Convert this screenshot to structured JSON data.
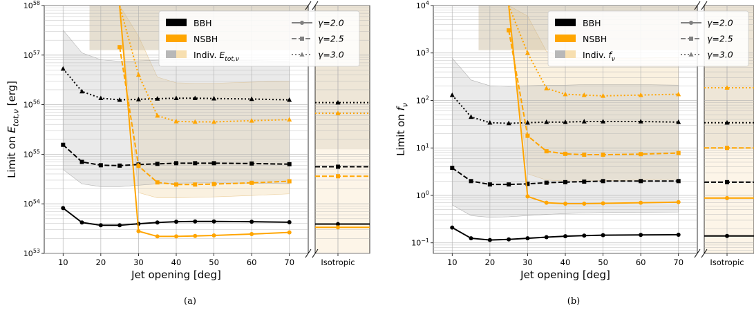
{
  "colors": {
    "bbh": "#000000",
    "nsbh": "#ffa500",
    "grid": "#b0b0b0"
  },
  "chart_data": [
    {
      "type": "line",
      "caption": "(a)",
      "ylabel": "Limit on $E_{tot,\\nu}$ [erg]",
      "xlabel": "Jet opening [deg]",
      "x": [
        10,
        15,
        20,
        25,
        30,
        35,
        40,
        45,
        50,
        60,
        70
      ],
      "xticks": [
        "10",
        "20",
        "30",
        "40",
        "50",
        "60",
        "70"
      ],
      "xlim": [
        5,
        75
      ],
      "ylim": [
        1e+53,
        1e+58
      ],
      "yscale": "log",
      "yticks": [
        "10^53",
        "10^54",
        "10^55",
        "10^56",
        "10^57",
        "10^58"
      ],
      "iso_label": "Isotropic",
      "series": [
        {
          "source": "BBH",
          "gamma": "2.0",
          "values": [
            8.2e+53,
            4.2e+53,
            3.7e+53,
            3.7e+53,
            3.95e+53,
            4.2e+53,
            4.35e+53,
            4.4e+53,
            4.4e+53,
            4.35e+53,
            4.25e+53
          ],
          "iso": 3.9e+53
        },
        {
          "source": "BBH",
          "gamma": "2.5",
          "values": [
            1.55e+55,
            7e+54,
            6e+54,
            5.9e+54,
            6.2e+54,
            6.4e+54,
            6.6e+54,
            6.6e+54,
            6.6e+54,
            6.5e+54,
            6.3e+54
          ],
          "iso": 5.6e+54
        },
        {
          "source": "BBH",
          "gamma": "3.0",
          "values": [
            5.3e+56,
            1.85e+56,
            1.35e+56,
            1.25e+56,
            1.28e+56,
            1.32e+56,
            1.35e+56,
            1.35e+56,
            1.33e+56,
            1.3e+56,
            1.25e+56
          ],
          "iso": 1.1e+56
        },
        {
          "source": "NSBH",
          "gamma": "2.0",
          "values": [
            null,
            null,
            null,
            9.9e+57,
            2.8e+53,
            2.2e+53,
            2.2e+53,
            2.25e+53,
            2.3e+53,
            2.45e+53,
            2.65e+53
          ],
          "iso": 3.35e+53
        },
        {
          "source": "NSBH",
          "gamma": "2.5",
          "values": [
            null,
            null,
            null,
            1.45e+57,
            5.8e+54,
            2.7e+54,
            2.45e+54,
            2.45e+54,
            2.5e+54,
            2.65e+54,
            2.85e+54
          ],
          "iso": 3.6e+54
        },
        {
          "source": "NSBH",
          "gamma": "3.0",
          "values": [
            null,
            null,
            null,
            9.9e+57,
            4e+56,
            6e+55,
            4.6e+55,
            4.5e+55,
            4.5e+55,
            4.75e+55,
            5e+55
          ],
          "iso": 6.7e+55
        }
      ],
      "legend": {
        "bbh": "BBH",
        "nsbh": "NSBH",
        "indiv": "Indiv. $E_{tot,\\nu}$",
        "g20": "$\\gamma = 2.0$",
        "g25": "$\\gamma = 2.5$",
        "g30": "$\\gamma = 3.0$"
      }
    },
    {
      "type": "line",
      "caption": "(b)",
      "ylabel": "Limit on $f_\\nu$",
      "xlabel": "Jet opening [deg]",
      "x": [
        10,
        15,
        20,
        25,
        30,
        35,
        40,
        45,
        50,
        60,
        70
      ],
      "xticks": [
        "10",
        "20",
        "30",
        "40",
        "50",
        "60",
        "70"
      ],
      "xlim": [
        5,
        75
      ],
      "ylim": [
        0.06,
        10000.0
      ],
      "yscale": "log",
      "yticks": [
        "10^-1",
        "10^0",
        "10^1",
        "10^2",
        "10^3",
        "10^4"
      ],
      "iso_label": "Isotropic",
      "series": [
        {
          "source": "BBH",
          "gamma": "2.0",
          "values": [
            0.21,
            0.125,
            0.115,
            0.118,
            0.125,
            0.132,
            0.138,
            0.142,
            0.145,
            0.147,
            0.148
          ],
          "iso": 0.14
        },
        {
          "source": "BBH",
          "gamma": "2.5",
          "values": [
            3.8,
            2.0,
            1.7,
            1.7,
            1.75,
            1.85,
            1.9,
            1.95,
            2.0,
            2.0,
            2.0
          ],
          "iso": 1.9
        },
        {
          "source": "BBH",
          "gamma": "3.0",
          "values": [
            130,
            45,
            34,
            33,
            34,
            35,
            35,
            36,
            36,
            36,
            35
          ],
          "iso": 34
        },
        {
          "source": "NSBH",
          "gamma": "2.0",
          "values": [
            null,
            null,
            null,
            9900,
            0.95,
            0.7,
            0.67,
            0.67,
            0.68,
            0.7,
            0.72
          ],
          "iso": 0.88
        },
        {
          "source": "NSBH",
          "gamma": "2.5",
          "values": [
            null,
            null,
            null,
            3000,
            18,
            8.5,
            7.5,
            7.2,
            7.2,
            7.4,
            7.8
          ],
          "iso": 10
        },
        {
          "source": "NSBH",
          "gamma": "3.0",
          "values": [
            null,
            null,
            null,
            9900,
            1000,
            180,
            135,
            130,
            125,
            130,
            135
          ],
          "iso": 185
        }
      ],
      "legend": {
        "bbh": "BBH",
        "nsbh": "NSBH",
        "indiv": "Indiv. $f_\\nu$",
        "g20": "$\\gamma = 2.0$",
        "g25": "$\\gamma = 2.5$",
        "g30": "$\\gamma = 3.0$"
      }
    }
  ]
}
